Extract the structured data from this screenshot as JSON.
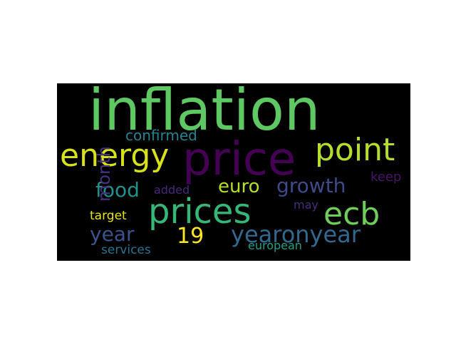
{
  "wordcloud": {
    "background": "#000000",
    "words": [
      {
        "id": "inflation",
        "text": "inflation",
        "color": "#5ec962"
      },
      {
        "id": "price",
        "text": "price",
        "color": "#440154"
      },
      {
        "id": "prices",
        "text": "prices",
        "color": "#35b779"
      },
      {
        "id": "energy",
        "text": "energy",
        "color": "#d8e219"
      },
      {
        "id": "point",
        "text": "point",
        "color": "#b5de2b"
      },
      {
        "id": "ecb",
        "text": "ecb",
        "color": "#6ece58"
      },
      {
        "id": "yearonyear",
        "text": "yearonyear",
        "color": "#31688e"
      },
      {
        "id": "growth",
        "text": "growth",
        "color": "#3e4a89"
      },
      {
        "id": "month",
        "text": "month",
        "color": "#46327e"
      },
      {
        "id": "food",
        "text": "food",
        "color": "#21918c"
      },
      {
        "id": "euro",
        "text": "euro",
        "color": "#b5de2b"
      },
      {
        "id": "year",
        "text": "year",
        "color": "#3b528b"
      },
      {
        "id": "19",
        "text": "19",
        "color": "#fde725"
      },
      {
        "id": "confirmed",
        "text": "confirmed",
        "color": "#26828e"
      },
      {
        "id": "keep",
        "text": "keep",
        "color": "#481467"
      },
      {
        "id": "added",
        "text": "added",
        "color": "#482878"
      },
      {
        "id": "may",
        "text": "may",
        "color": "#472d7b"
      },
      {
        "id": "target",
        "text": "target",
        "color": "#e5e419"
      },
      {
        "id": "services",
        "text": "services",
        "color": "#2c728e"
      },
      {
        "id": "european",
        "text": "european",
        "color": "#1f9e89"
      }
    ]
  }
}
